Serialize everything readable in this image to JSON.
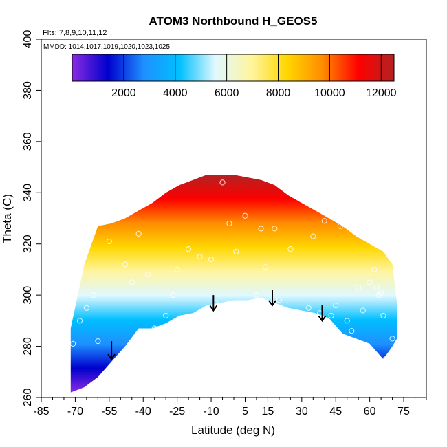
{
  "chart_data": {
    "type": "heatmap",
    "title": "ATOM3 Northbound H_GEOS5",
    "annotations": [
      "Flts: 7,8,9,10,11,12",
      "MMDD: 1014,1017,1019,1020,1023,1025"
    ],
    "xlabel": "Latitude (deg N)",
    "ylabel": "Theta (C)",
    "xlim": [
      -85,
      85
    ],
    "ylim": [
      260,
      400
    ],
    "x_ticks": [
      -85,
      -70,
      -55,
      -40,
      -25,
      -10,
      5,
      15,
      30,
      45,
      60,
      75
    ],
    "y_ticks": [
      260,
      280,
      300,
      320,
      340,
      360,
      380,
      400
    ],
    "colorbar": {
      "min": 0,
      "max": 12500,
      "ticks": [
        2000,
        4000,
        6000,
        8000,
        10000,
        12000
      ],
      "colors": [
        "#8a2be2",
        "#0000cd",
        "#1e90ff",
        "#00bfff",
        "#e0f8ff",
        "#fff5a0",
        "#ffd700",
        "#ff8c00",
        "#ff0000",
        "#b22222"
      ]
    },
    "envelope": {
      "lat": [
        -72,
        -66,
        -60,
        -54,
        -48,
        -42,
        -36,
        -30,
        -24,
        -18,
        -12,
        -6,
        0,
        6,
        12,
        18,
        24,
        30,
        36,
        42,
        48,
        54,
        60,
        66,
        70,
        72
      ],
      "theta_bottom": [
        262,
        264,
        268,
        274,
        280,
        287,
        287,
        289,
        292,
        293,
        296,
        297,
        298,
        298,
        299,
        297,
        295,
        294,
        293,
        291,
        285,
        283,
        281,
        275,
        280,
        283
      ],
      "theta_top": [
        287,
        312,
        327,
        328,
        330,
        333,
        336,
        340,
        343,
        345,
        347,
        347,
        347,
        346,
        345,
        343,
        339,
        336,
        333,
        330,
        327,
        323,
        320,
        317,
        312,
        297
      ],
      "value_at_bottom": 1000,
      "value_at_top": 11500
    },
    "markers": [
      {
        "type": "circles",
        "lat": [
          -71,
          -68,
          -65,
          -62,
          -60,
          -55,
          -52,
          -48,
          -45,
          -42,
          -38,
          -35,
          -30,
          -27,
          -25,
          -20,
          -15,
          -10,
          -8,
          -5,
          -2,
          1,
          5,
          10,
          12,
          14,
          16,
          18,
          20,
          25,
          28,
          33,
          35,
          38,
          40,
          43,
          45,
          47,
          50,
          52,
          55,
          57,
          60,
          62,
          63,
          64,
          65,
          66,
          67,
          70
        ],
        "theta": [
          281,
          290,
          295,
          300,
          282,
          321,
          269,
          312,
          305,
          324,
          308,
          287,
          292,
          300,
          310,
          318,
          315,
          314,
          297,
          344,
          328,
          317,
          331,
          300,
          326,
          311,
          298,
          326,
          298,
          318,
          341,
          295,
          323,
          293,
          329,
          292,
          296,
          327,
          290,
          286,
          303,
          294,
          305,
          310,
          303,
          300,
          301,
          292,
          275,
          283
        ]
      },
      {
        "type": "arrows-down",
        "lat": [
          -54,
          -9,
          17,
          39
        ],
        "theta_start": [
          282,
          300,
          302,
          296
        ],
        "theta_end": [
          275,
          294,
          296,
          290
        ]
      }
    ]
  }
}
